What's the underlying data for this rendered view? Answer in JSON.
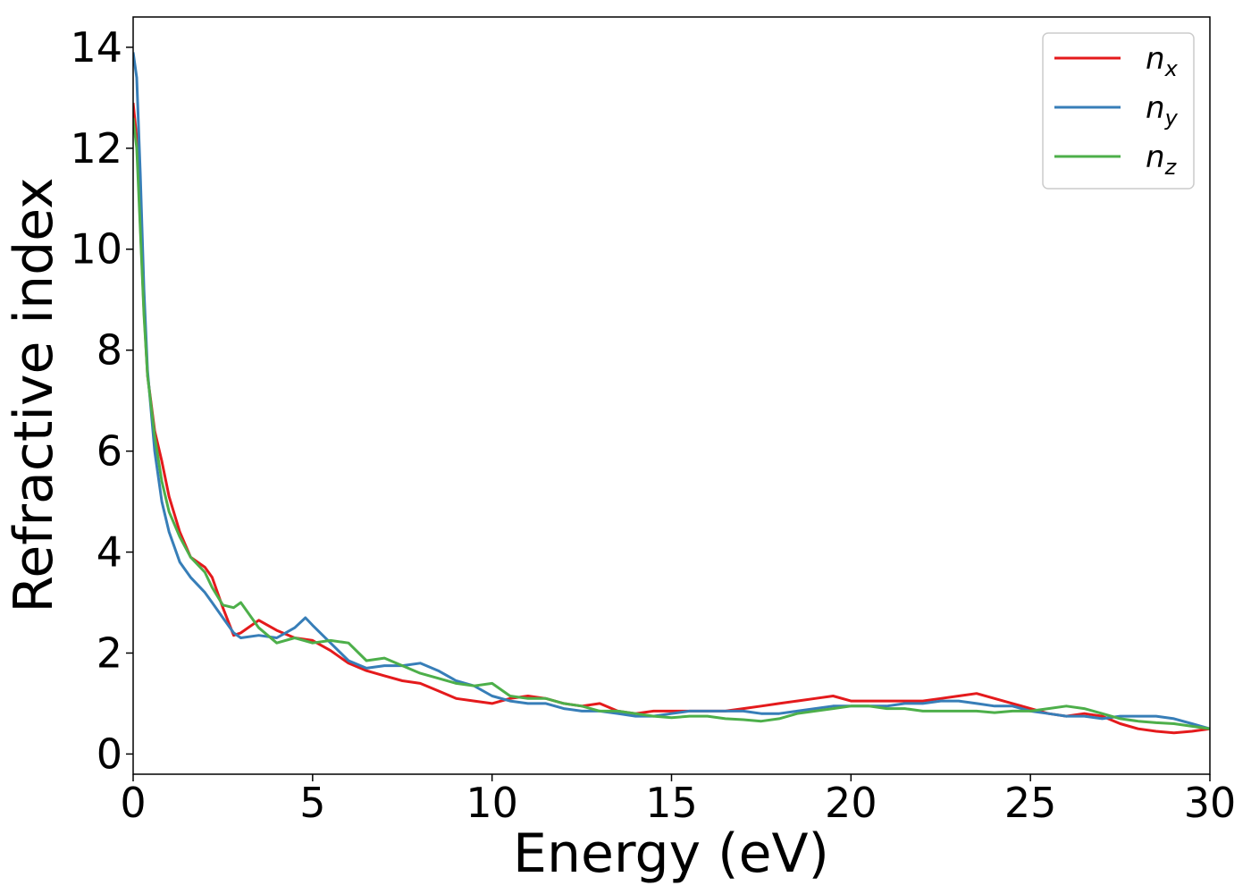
{
  "chart_data": {
    "type": "line",
    "xlabel": "Energy (eV)",
    "ylabel": "Refractive index",
    "xlim": [
      0,
      30
    ],
    "ylim": [
      -0.4,
      14.6
    ],
    "xticks": [
      0,
      5,
      10,
      15,
      20,
      25,
      30
    ],
    "yticks": [
      0,
      2,
      4,
      6,
      8,
      10,
      12,
      14
    ],
    "grid": false,
    "legend_position": "top-right",
    "series": [
      {
        "name": "n",
        "subscript": "x",
        "color": "#e41a1c",
        "x": [
          0,
          0.1,
          0.2,
          0.3,
          0.4,
          0.6,
          0.8,
          1.0,
          1.3,
          1.6,
          2.0,
          2.2,
          2.5,
          2.8,
          3.0,
          3.5,
          4.0,
          4.5,
          5.0,
          5.5,
          6.0,
          6.5,
          7.0,
          7.5,
          8.0,
          8.5,
          9.0,
          9.5,
          10.0,
          10.5,
          11.0,
          11.5,
          12.0,
          12.5,
          13.0,
          13.5,
          14.0,
          14.5,
          15.0,
          15.5,
          16.0,
          16.5,
          17.0,
          17.5,
          18.0,
          18.5,
          19.0,
          19.5,
          20.0,
          20.5,
          21.0,
          21.5,
          22.0,
          22.5,
          23.0,
          23.5,
          24.0,
          24.5,
          25.0,
          25.5,
          26.0,
          26.5,
          27.0,
          27.5,
          28.0,
          28.5,
          29.0,
          29.5,
          30.0
        ],
        "y": [
          12.9,
          12.2,
          10.5,
          8.8,
          7.5,
          6.4,
          5.8,
          5.1,
          4.4,
          3.9,
          3.7,
          3.5,
          2.9,
          2.35,
          2.4,
          2.65,
          2.45,
          2.3,
          2.25,
          2.05,
          1.8,
          1.65,
          1.55,
          1.45,
          1.4,
          1.25,
          1.1,
          1.05,
          1.0,
          1.1,
          1.15,
          1.1,
          1.0,
          0.95,
          1.0,
          0.85,
          0.8,
          0.85,
          0.85,
          0.85,
          0.85,
          0.85,
          0.9,
          0.95,
          1.0,
          1.05,
          1.1,
          1.15,
          1.05,
          1.05,
          1.05,
          1.05,
          1.05,
          1.1,
          1.15,
          1.2,
          1.1,
          1.0,
          0.9,
          0.8,
          0.75,
          0.8,
          0.75,
          0.6,
          0.5,
          0.45,
          0.42,
          0.45,
          0.5
        ]
      },
      {
        "name": "n",
        "subscript": "y",
        "color": "#377eb8",
        "x": [
          0,
          0.1,
          0.2,
          0.3,
          0.4,
          0.6,
          0.8,
          1.0,
          1.3,
          1.6,
          2.0,
          2.2,
          2.5,
          2.8,
          3.0,
          3.5,
          4.0,
          4.5,
          4.8,
          5.0,
          5.5,
          6.0,
          6.5,
          7.0,
          7.5,
          8.0,
          8.5,
          9.0,
          9.5,
          10.0,
          10.5,
          11.0,
          11.5,
          12.0,
          12.5,
          13.0,
          13.5,
          14.0,
          14.5,
          15.0,
          15.5,
          16.0,
          16.5,
          17.0,
          17.5,
          18.0,
          18.5,
          19.0,
          19.5,
          20.0,
          20.5,
          21.0,
          21.5,
          22.0,
          22.5,
          23.0,
          23.5,
          24.0,
          24.5,
          25.0,
          25.5,
          26.0,
          26.5,
          27.0,
          27.5,
          28.0,
          28.5,
          29.0,
          29.5,
          30.0
        ],
        "y": [
          13.9,
          13.4,
          11.5,
          9.2,
          7.6,
          6.0,
          5.0,
          4.4,
          3.8,
          3.5,
          3.2,
          3.0,
          2.7,
          2.4,
          2.3,
          2.35,
          2.3,
          2.5,
          2.7,
          2.55,
          2.2,
          1.85,
          1.7,
          1.75,
          1.75,
          1.8,
          1.65,
          1.45,
          1.35,
          1.15,
          1.05,
          1.0,
          1.0,
          0.9,
          0.85,
          0.85,
          0.8,
          0.75,
          0.75,
          0.8,
          0.85,
          0.85,
          0.85,
          0.85,
          0.8,
          0.8,
          0.85,
          0.9,
          0.95,
          0.95,
          0.95,
          0.95,
          1.0,
          1.0,
          1.05,
          1.05,
          1.0,
          0.95,
          0.95,
          0.85,
          0.8,
          0.75,
          0.75,
          0.7,
          0.75,
          0.75,
          0.75,
          0.7,
          0.6,
          0.5
        ]
      },
      {
        "name": "n",
        "subscript": "z",
        "color": "#4daf4a",
        "x": [
          0,
          0.1,
          0.2,
          0.3,
          0.4,
          0.6,
          0.8,
          1.0,
          1.3,
          1.6,
          2.0,
          2.2,
          2.5,
          2.8,
          3.0,
          3.5,
          4.0,
          4.5,
          5.0,
          5.5,
          6.0,
          6.5,
          7.0,
          7.5,
          8.0,
          8.5,
          9.0,
          9.5,
          10.0,
          10.5,
          11.0,
          11.5,
          12.0,
          12.5,
          13.0,
          13.5,
          14.0,
          14.5,
          15.0,
          15.5,
          16.0,
          16.5,
          17.0,
          17.5,
          18.0,
          18.5,
          19.0,
          19.5,
          20.0,
          20.5,
          21.0,
          21.5,
          22.0,
          22.5,
          23.0,
          23.5,
          24.0,
          24.5,
          25.0,
          25.5,
          26.0,
          26.5,
          27.0,
          27.5,
          28.0,
          28.5,
          29.0,
          29.5,
          30.0
        ],
        "y": [
          12.6,
          12.0,
          10.4,
          8.7,
          7.5,
          6.3,
          5.4,
          4.8,
          4.3,
          3.9,
          3.6,
          3.3,
          2.95,
          2.9,
          3.0,
          2.5,
          2.2,
          2.3,
          2.2,
          2.25,
          2.2,
          1.85,
          1.9,
          1.75,
          1.6,
          1.5,
          1.4,
          1.35,
          1.4,
          1.15,
          1.1,
          1.1,
          1.0,
          0.95,
          0.85,
          0.85,
          0.8,
          0.75,
          0.72,
          0.75,
          0.75,
          0.7,
          0.68,
          0.65,
          0.7,
          0.8,
          0.85,
          0.9,
          0.95,
          0.95,
          0.9,
          0.9,
          0.85,
          0.85,
          0.85,
          0.85,
          0.82,
          0.85,
          0.85,
          0.9,
          0.95,
          0.9,
          0.8,
          0.7,
          0.65,
          0.62,
          0.6,
          0.55,
          0.5
        ]
      }
    ]
  }
}
